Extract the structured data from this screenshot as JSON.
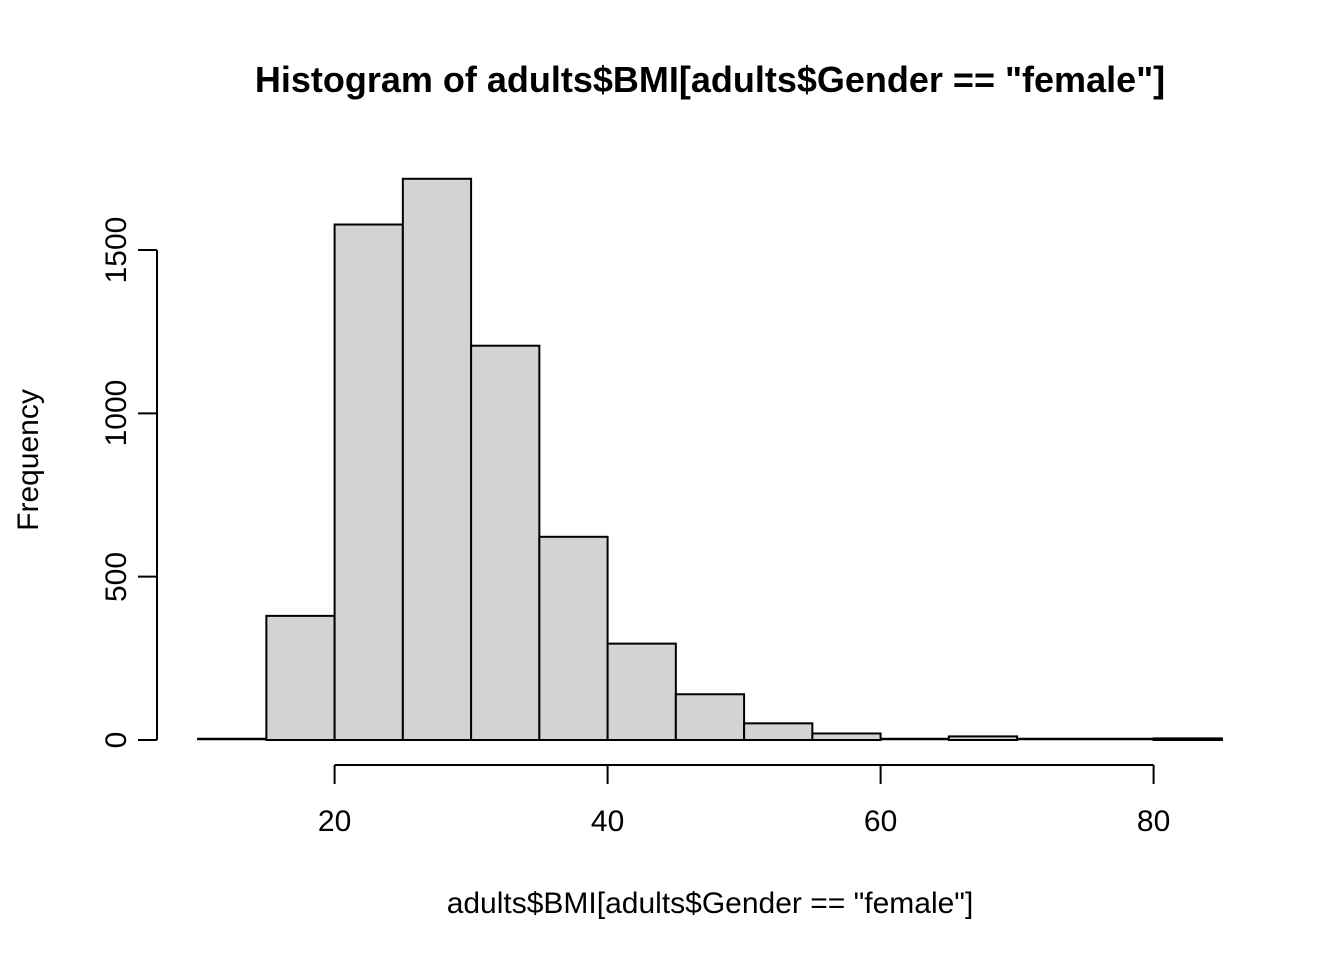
{
  "figure": {
    "background": "#ffffff",
    "text_color": "#000000"
  },
  "chart": {
    "title": "Histogram of adults$BMI[adults$Gender == \"female\"]",
    "xlabel": "adults$BMI[adults$Gender == \"female\"]",
    "ylabel": "Frequency"
  },
  "chart_data": {
    "type": "bar",
    "subtype": "histogram",
    "title": "Histogram of adults$BMI[adults$Gender == \"female\"]",
    "xlabel": "adults$BMI[adults$Gender == \"female\"]",
    "ylabel": "Frequency",
    "bin_width": 5,
    "bin_edges": [
      10,
      15,
      20,
      25,
      30,
      35,
      40,
      45,
      50,
      55,
      60,
      65,
      70,
      75,
      80,
      85
    ],
    "counts": [
      0,
      380,
      1578,
      1718,
      1207,
      622,
      295,
      140,
      51,
      20,
      2,
      11,
      0,
      0,
      5
    ],
    "x_ticks": [
      20,
      40,
      60,
      80
    ],
    "y_ticks": [
      0,
      500,
      1000,
      1500
    ],
    "xlim": [
      10,
      85
    ],
    "ylim": [
      0,
      1718
    ],
    "bar_fill": "#d3d3d3",
    "bar_stroke": "#000000",
    "axis_color": "#000000",
    "grid": false,
    "legend": false
  }
}
